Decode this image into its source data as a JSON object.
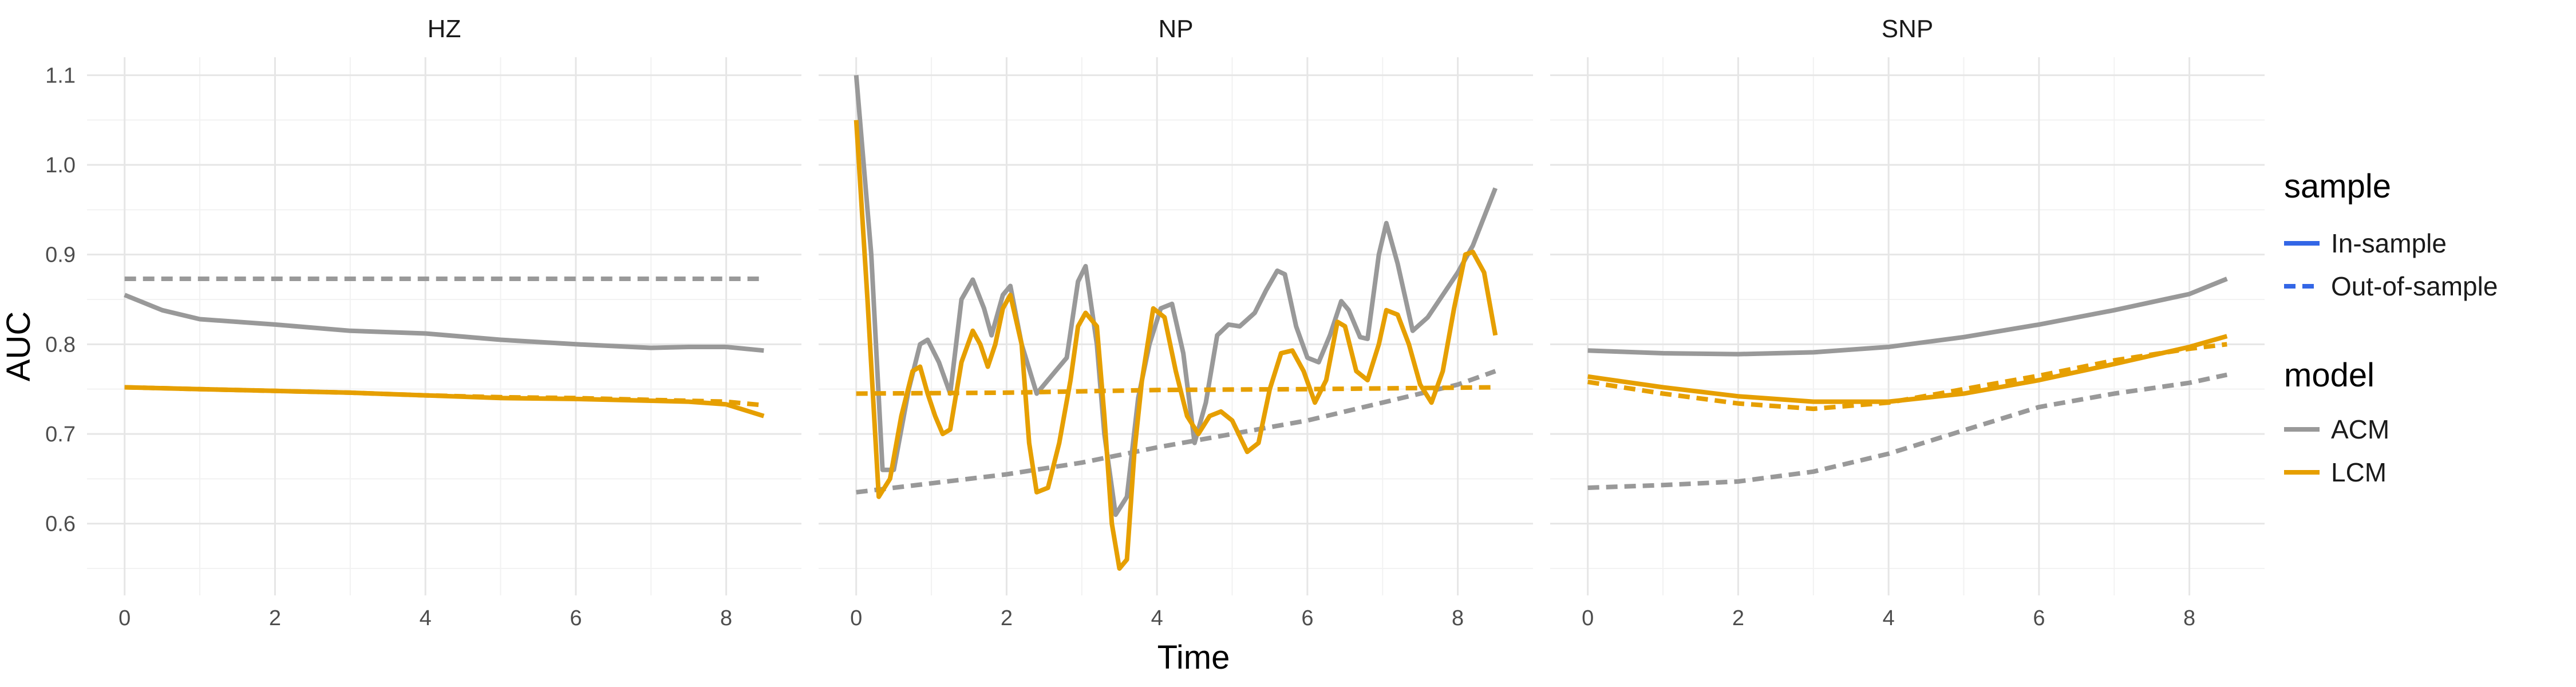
{
  "chart_data": {
    "type": "line",
    "xlabel": "Time",
    "ylabel": "AUC",
    "xlim": [
      -0.5,
      9.0
    ],
    "ylim": [
      0.52,
      1.12
    ],
    "x_ticks": [
      0,
      2,
      4,
      6,
      8
    ],
    "y_ticks": [
      0.6,
      0.7,
      0.8,
      0.9,
      1.0,
      1.1
    ],
    "y_tick_labels": [
      "0.6",
      "0.7",
      "0.8",
      "0.9",
      "1.0",
      "1.1"
    ],
    "grid": true,
    "legend": {
      "placement": "right",
      "groups": [
        {
          "title": "sample",
          "entries": [
            {
              "label": "In-sample",
              "linetype": "solid",
              "color": "#3366e6"
            },
            {
              "label": "Out-of-sample",
              "linetype": "dashed",
              "color": "#3366e6"
            }
          ]
        },
        {
          "title": "model",
          "entries": [
            {
              "label": "ACM",
              "linetype": "solid",
              "color": "#999999"
            },
            {
              "label": "LCM",
              "linetype": "solid",
              "color": "#e69f00"
            }
          ]
        }
      ]
    },
    "colors": {
      "ACM": "#999999",
      "LCM": "#e69f00"
    },
    "panels": [
      {
        "title": "HZ",
        "series": [
          {
            "model": "ACM",
            "sample": "In-sample",
            "points": [
              [
                0,
                0.855
              ],
              [
                0.5,
                0.838
              ],
              [
                1,
                0.828
              ],
              [
                2,
                0.822
              ],
              [
                3,
                0.815
              ],
              [
                4,
                0.812
              ],
              [
                5,
                0.805
              ],
              [
                6,
                0.8
              ],
              [
                7,
                0.796
              ],
              [
                7.5,
                0.797
              ],
              [
                8,
                0.797
              ],
              [
                8.5,
                0.793
              ]
            ]
          },
          {
            "model": "ACM",
            "sample": "Out-of-sample",
            "points": [
              [
                0,
                0.873
              ],
              [
                8.5,
                0.873
              ]
            ]
          },
          {
            "model": "LCM",
            "sample": "In-sample",
            "points": [
              [
                0,
                0.752
              ],
              [
                1,
                0.75
              ],
              [
                2,
                0.748
              ],
              [
                3,
                0.746
              ],
              [
                4,
                0.743
              ],
              [
                5,
                0.74
              ],
              [
                6,
                0.739
              ],
              [
                7,
                0.737
              ],
              [
                7.5,
                0.736
              ],
              [
                8,
                0.733
              ],
              [
                8.5,
                0.72
              ]
            ]
          },
          {
            "model": "LCM",
            "sample": "Out-of-sample",
            "points": [
              [
                0,
                0.752
              ],
              [
                1,
                0.75
              ],
              [
                2,
                0.748
              ],
              [
                3,
                0.746
              ],
              [
                4,
                0.743
              ],
              [
                5,
                0.741
              ],
              [
                6,
                0.74
              ],
              [
                7,
                0.738
              ],
              [
                8,
                0.736
              ],
              [
                8.5,
                0.732
              ]
            ]
          }
        ]
      },
      {
        "title": "NP",
        "series": [
          {
            "model": "ACM",
            "sample": "In-sample",
            "points": [
              [
                0,
                1.1
              ],
              [
                0.2,
                0.9
              ],
              [
                0.35,
                0.66
              ],
              [
                0.5,
                0.66
              ],
              [
                0.7,
                0.75
              ],
              [
                0.85,
                0.8
              ],
              [
                0.95,
                0.805
              ],
              [
                1.1,
                0.78
              ],
              [
                1.25,
                0.745
              ],
              [
                1.4,
                0.85
              ],
              [
                1.55,
                0.872
              ],
              [
                1.7,
                0.84
              ],
              [
                1.8,
                0.81
              ],
              [
                1.95,
                0.855
              ],
              [
                2.05,
                0.865
              ],
              [
                2.2,
                0.8
              ],
              [
                2.4,
                0.745
              ],
              [
                2.6,
                0.765
              ],
              [
                2.8,
                0.785
              ],
              [
                2.95,
                0.87
              ],
              [
                3.05,
                0.887
              ],
              [
                3.2,
                0.8
              ],
              [
                3.3,
                0.7
              ],
              [
                3.45,
                0.61
              ],
              [
                3.6,
                0.63
              ],
              [
                3.75,
                0.74
              ],
              [
                3.9,
                0.8
              ],
              [
                4.05,
                0.84
              ],
              [
                4.2,
                0.845
              ],
              [
                4.35,
                0.79
              ],
              [
                4.5,
                0.69
              ],
              [
                4.65,
                0.735
              ],
              [
                4.8,
                0.81
              ],
              [
                4.95,
                0.822
              ],
              [
                5.1,
                0.82
              ],
              [
                5.3,
                0.835
              ],
              [
                5.45,
                0.86
              ],
              [
                5.6,
                0.882
              ],
              [
                5.7,
                0.878
              ],
              [
                5.85,
                0.82
              ],
              [
                6.0,
                0.785
              ],
              [
                6.15,
                0.78
              ],
              [
                6.3,
                0.81
              ],
              [
                6.45,
                0.848
              ],
              [
                6.55,
                0.838
              ],
              [
                6.7,
                0.808
              ],
              [
                6.8,
                0.806
              ],
              [
                6.95,
                0.9
              ],
              [
                7.05,
                0.935
              ],
              [
                7.2,
                0.89
              ],
              [
                7.4,
                0.815
              ],
              [
                7.6,
                0.83
              ],
              [
                7.8,
                0.855
              ],
              [
                8.0,
                0.88
              ],
              [
                8.2,
                0.91
              ],
              [
                8.5,
                0.974
              ]
            ]
          },
          {
            "model": "ACM",
            "sample": "Out-of-sample",
            "points": [
              [
                0,
                0.635
              ],
              [
                1,
                0.645
              ],
              [
                2,
                0.655
              ],
              [
                3,
                0.668
              ],
              [
                4,
                0.685
              ],
              [
                5,
                0.7
              ],
              [
                6,
                0.715
              ],
              [
                7,
                0.735
              ],
              [
                8,
                0.755
              ],
              [
                8.5,
                0.77
              ]
            ]
          },
          {
            "model": "LCM",
            "sample": "In-sample",
            "points": [
              [
                0,
                1.05
              ],
              [
                0.15,
                0.85
              ],
              [
                0.3,
                0.63
              ],
              [
                0.45,
                0.65
              ],
              [
                0.6,
                0.72
              ],
              [
                0.75,
                0.77
              ],
              [
                0.85,
                0.775
              ],
              [
                0.95,
                0.745
              ],
              [
                1.05,
                0.72
              ],
              [
                1.15,
                0.7
              ],
              [
                1.25,
                0.705
              ],
              [
                1.4,
                0.78
              ],
              [
                1.55,
                0.815
              ],
              [
                1.65,
                0.8
              ],
              [
                1.75,
                0.775
              ],
              [
                1.85,
                0.8
              ],
              [
                1.95,
                0.84
              ],
              [
                2.05,
                0.855
              ],
              [
                2.2,
                0.8
              ],
              [
                2.3,
                0.69
              ],
              [
                2.4,
                0.635
              ],
              [
                2.55,
                0.64
              ],
              [
                2.7,
                0.69
              ],
              [
                2.85,
                0.76
              ],
              [
                2.95,
                0.82
              ],
              [
                3.05,
                0.835
              ],
              [
                3.2,
                0.82
              ],
              [
                3.3,
                0.72
              ],
              [
                3.4,
                0.6
              ],
              [
                3.5,
                0.55
              ],
              [
                3.6,
                0.56
              ],
              [
                3.7,
                0.68
              ],
              [
                3.8,
                0.76
              ],
              [
                3.95,
                0.84
              ],
              [
                4.1,
                0.83
              ],
              [
                4.25,
                0.77
              ],
              [
                4.4,
                0.72
              ],
              [
                4.55,
                0.7
              ],
              [
                4.7,
                0.72
              ],
              [
                4.85,
                0.725
              ],
              [
                5.0,
                0.715
              ],
              [
                5.2,
                0.68
              ],
              [
                5.35,
                0.69
              ],
              [
                5.5,
                0.75
              ],
              [
                5.65,
                0.79
              ],
              [
                5.8,
                0.793
              ],
              [
                5.95,
                0.77
              ],
              [
                6.1,
                0.735
              ],
              [
                6.25,
                0.76
              ],
              [
                6.4,
                0.825
              ],
              [
                6.5,
                0.82
              ],
              [
                6.65,
                0.77
              ],
              [
                6.8,
                0.76
              ],
              [
                6.95,
                0.8
              ],
              [
                7.05,
                0.838
              ],
              [
                7.2,
                0.833
              ],
              [
                7.35,
                0.8
              ],
              [
                7.5,
                0.755
              ],
              [
                7.65,
                0.735
              ],
              [
                7.8,
                0.77
              ],
              [
                7.95,
                0.84
              ],
              [
                8.1,
                0.9
              ],
              [
                8.2,
                0.903
              ],
              [
                8.35,
                0.88
              ],
              [
                8.5,
                0.81
              ]
            ]
          },
          {
            "model": "LCM",
            "sample": "Out-of-sample",
            "points": [
              [
                0,
                0.745
              ],
              [
                2,
                0.746
              ],
              [
                4,
                0.749
              ],
              [
                6,
                0.75
              ],
              [
                8.5,
                0.752
              ]
            ]
          }
        ]
      },
      {
        "title": "SNP",
        "series": [
          {
            "model": "ACM",
            "sample": "In-sample",
            "points": [
              [
                0,
                0.793
              ],
              [
                1,
                0.79
              ],
              [
                2,
                0.789
              ],
              [
                3,
                0.791
              ],
              [
                4,
                0.797
              ],
              [
                5,
                0.808
              ],
              [
                6,
                0.822
              ],
              [
                7,
                0.838
              ],
              [
                8,
                0.856
              ],
              [
                8.5,
                0.873
              ]
            ]
          },
          {
            "model": "ACM",
            "sample": "Out-of-sample",
            "points": [
              [
                0,
                0.64
              ],
              [
                1,
                0.643
              ],
              [
                2,
                0.647
              ],
              [
                3,
                0.658
              ],
              [
                4,
                0.678
              ],
              [
                5,
                0.704
              ],
              [
                6,
                0.73
              ],
              [
                7,
                0.745
              ],
              [
                8,
                0.757
              ],
              [
                8.5,
                0.766
              ]
            ]
          },
          {
            "model": "LCM",
            "sample": "In-sample",
            "points": [
              [
                0,
                0.764
              ],
              [
                1,
                0.752
              ],
              [
                2,
                0.742
              ],
              [
                3,
                0.736
              ],
              [
                4,
                0.736
              ],
              [
                5,
                0.745
              ],
              [
                6,
                0.76
              ],
              [
                7,
                0.778
              ],
              [
                8,
                0.797
              ],
              [
                8.5,
                0.809
              ]
            ]
          },
          {
            "model": "LCM",
            "sample": "Out-of-sample",
            "points": [
              [
                0,
                0.758
              ],
              [
                1,
                0.745
              ],
              [
                2,
                0.734
              ],
              [
                3,
                0.728
              ],
              [
                4,
                0.735
              ],
              [
                5,
                0.75
              ],
              [
                6,
                0.765
              ],
              [
                7,
                0.782
              ],
              [
                8,
                0.795
              ],
              [
                8.5,
                0.8
              ]
            ]
          }
        ]
      }
    ]
  }
}
